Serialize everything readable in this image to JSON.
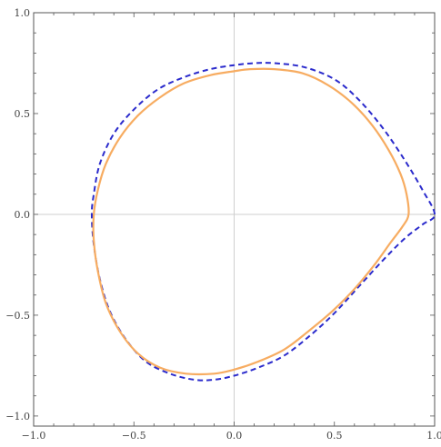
{
  "chart_data": {
    "type": "line",
    "title": "",
    "xlabel": "",
    "ylabel": "",
    "xlim": [
      -1.0,
      1.0
    ],
    "ylim": [
      -1.05,
      1.0
    ],
    "xticks": [
      -1.0,
      -0.5,
      0.0,
      0.5,
      1.0
    ],
    "yticks": [
      -1.0,
      -0.5,
      0.0,
      0.5,
      1.0
    ],
    "xtick_labels": [
      "−1.0",
      "−0.5",
      "0.0",
      "0.5",
      "1.0"
    ],
    "ytick_labels": [
      "−1.0",
      "−0.5",
      "0.0",
      "0.5",
      "1.0"
    ],
    "grid": false,
    "axes_through_origin": true,
    "series": [
      {
        "style": "dashed",
        "color": "#2b2bcc",
        "x": [
          1.0,
          0.94,
          0.85,
          0.74,
          0.62,
          0.5,
          0.35,
          0.2,
          0.1,
          0.0,
          -0.12,
          -0.25,
          -0.38,
          -0.5,
          -0.6,
          -0.67,
          -0.7,
          -0.71,
          -0.7,
          -0.67,
          -0.62,
          -0.54,
          -0.44,
          -0.32,
          -0.2,
          -0.1,
          0.0,
          0.12,
          0.25,
          0.38,
          0.5,
          0.62,
          0.74,
          0.85,
          0.94,
          1.0
        ],
        "y": [
          0.0,
          0.12,
          0.27,
          0.43,
          0.57,
          0.67,
          0.73,
          0.75,
          0.75,
          0.74,
          0.72,
          0.68,
          0.62,
          0.52,
          0.4,
          0.25,
          0.1,
          0.0,
          -0.15,
          -0.32,
          -0.48,
          -0.62,
          -0.73,
          -0.79,
          -0.82,
          -0.82,
          -0.8,
          -0.76,
          -0.7,
          -0.6,
          -0.49,
          -0.36,
          -0.23,
          -0.12,
          -0.05,
          0.0
        ]
      },
      {
        "style": "solid",
        "color": "#f7ac61",
        "x": [
          0.87,
          0.86,
          0.83,
          0.77,
          0.69,
          0.59,
          0.47,
          0.34,
          0.2,
          0.08,
          0.0,
          -0.12,
          -0.25,
          -0.37,
          -0.48,
          -0.57,
          -0.64,
          -0.68,
          -0.7,
          -0.7,
          -0.68,
          -0.64,
          -0.57,
          -0.48,
          -0.37,
          -0.24,
          -0.1,
          0.0,
          0.12,
          0.25,
          0.37,
          0.49,
          0.6,
          0.7,
          0.78,
          0.84,
          0.87
        ],
        "y": [
          0.0,
          0.1,
          0.2,
          0.32,
          0.44,
          0.55,
          0.64,
          0.7,
          0.72,
          0.72,
          0.71,
          0.69,
          0.65,
          0.58,
          0.49,
          0.38,
          0.25,
          0.12,
          0.0,
          -0.13,
          -0.28,
          -0.44,
          -0.58,
          -0.69,
          -0.76,
          -0.79,
          -0.79,
          -0.77,
          -0.73,
          -0.67,
          -0.58,
          -0.48,
          -0.37,
          -0.25,
          -0.14,
          -0.06,
          0.0
        ]
      }
    ]
  }
}
